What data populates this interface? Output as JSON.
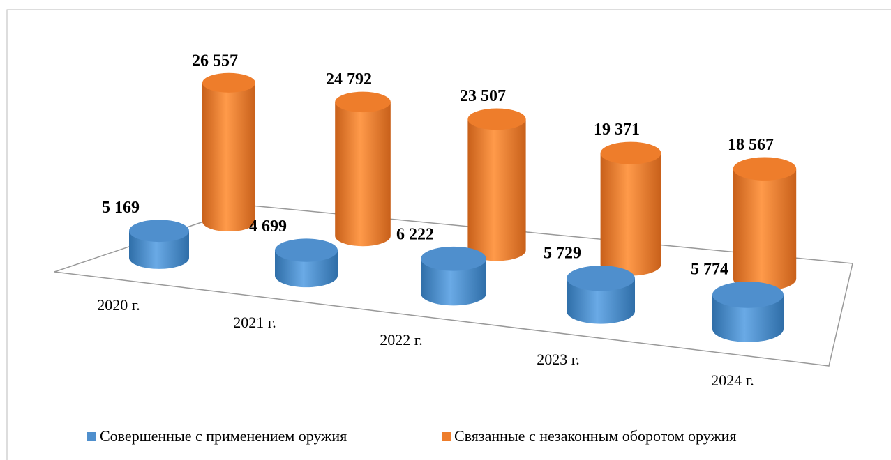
{
  "chart_data": {
    "type": "cylinder",
    "categories": [
      "2020 г.",
      "2021 г.",
      "2022 г.",
      "2023 г.",
      "2024 г."
    ],
    "series": [
      {
        "name": "Совершенные с применением оружия",
        "color": "#4f8fcd",
        "values": [
          5169,
          4699,
          6222,
          5729,
          5774
        ],
        "value_labels": [
          "5 169",
          "4 699",
          "6 222",
          "5 729",
          "5 774"
        ]
      },
      {
        "name": "Связанные с незаконным оборотом оружия",
        "color": "#ee7d2b",
        "values": [
          26557,
          24792,
          23507,
          19371,
          18567
        ],
        "value_labels": [
          "26 557",
          "24 792",
          "23 507",
          "19 371",
          "18 567"
        ]
      }
    ]
  }
}
